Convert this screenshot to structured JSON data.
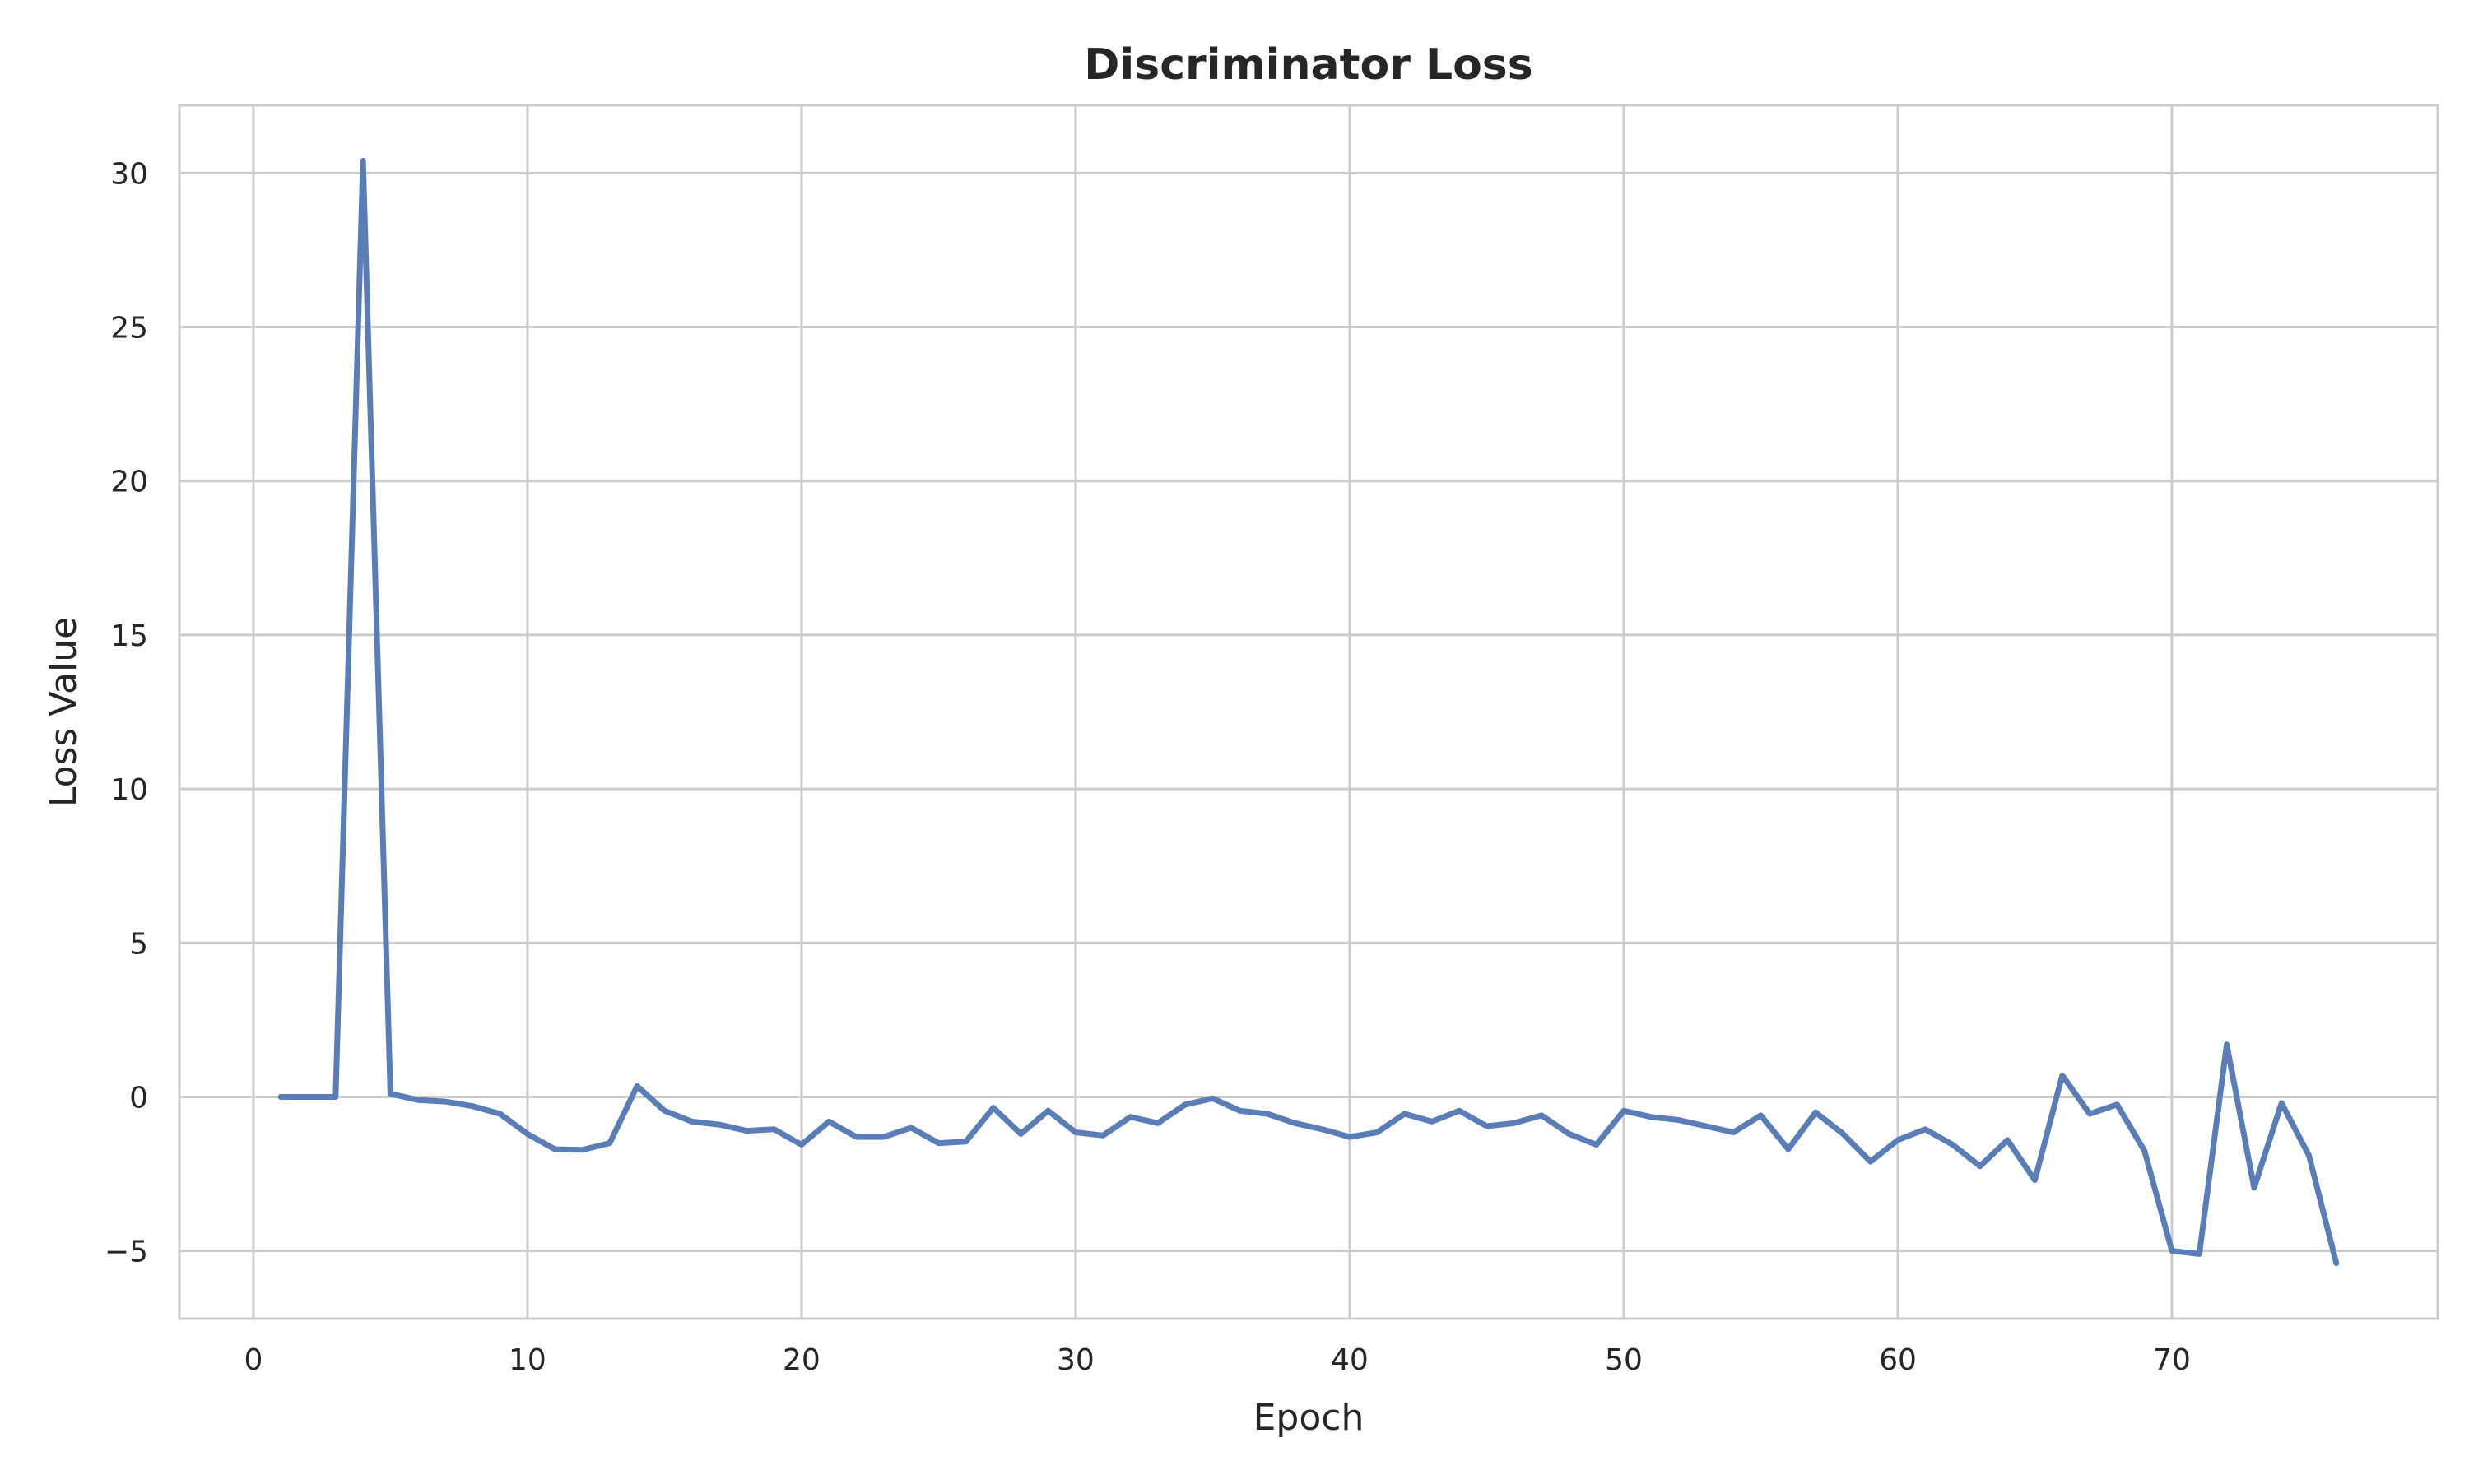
{
  "chart_data": {
    "type": "line",
    "title": "Discriminator Loss",
    "xlabel": "Epoch",
    "ylabel": "Loss Value",
    "xlim": [
      -2.7,
      79.7
    ],
    "ylim": [
      -7.2,
      32.2
    ],
    "xticks": [
      0,
      10,
      20,
      30,
      40,
      50,
      60,
      70
    ],
    "xtick_labels": [
      "0",
      "10",
      "20",
      "30",
      "40",
      "50",
      "60",
      "70"
    ],
    "yticks": [
      -5,
      0,
      5,
      10,
      15,
      20,
      25,
      30
    ],
    "ytick_labels": [
      "−5",
      "0",
      "5",
      "10",
      "15",
      "20",
      "25",
      "30"
    ],
    "grid": true,
    "legend": "none",
    "series": [
      {
        "color": "#5a7db8",
        "x": [
          1,
          2,
          3,
          4,
          5,
          6,
          7,
          8,
          9,
          10,
          11,
          12,
          13,
          14,
          15,
          16,
          17,
          18,
          19,
          20,
          21,
          22,
          23,
          24,
          25,
          26,
          27,
          28,
          29,
          30,
          31,
          32,
          33,
          34,
          35,
          36,
          37,
          38,
          39,
          40,
          41,
          42,
          43,
          44,
          45,
          46,
          47,
          48,
          49,
          50,
          51,
          52,
          53,
          54,
          55,
          56,
          57,
          58,
          59,
          60,
          61,
          62,
          63,
          64,
          65,
          66,
          67,
          68,
          69,
          70,
          71,
          72,
          73,
          74,
          75,
          76
        ],
        "y": [
          0.0,
          0.0,
          0.0,
          30.4,
          0.1,
          -0.1,
          -0.15,
          -0.3,
          -0.55,
          -1.2,
          -1.7,
          -1.72,
          -1.5,
          0.35,
          -0.45,
          -0.8,
          -0.9,
          -1.1,
          -1.05,
          -1.55,
          -0.8,
          -1.3,
          -1.3,
          -1.0,
          -1.5,
          -1.45,
          -0.35,
          -1.2,
          -0.45,
          -1.15,
          -1.25,
          -0.65,
          -0.85,
          -0.25,
          -0.05,
          -0.45,
          -0.55,
          -0.85,
          -1.05,
          -1.3,
          -1.15,
          -0.55,
          -0.8,
          -0.45,
          -0.95,
          -0.85,
          -0.6,
          -1.2,
          -1.55,
          -0.45,
          -0.65,
          -0.75,
          -0.95,
          -1.15,
          -0.6,
          -1.7,
          -0.5,
          -1.2,
          -2.1,
          -1.4,
          -1.05,
          -1.55,
          -2.25,
          -1.4,
          -2.7,
          0.7,
          -0.55,
          -0.25,
          -1.75,
          -5.0,
          -5.1,
          1.7,
          -2.95,
          -0.2,
          -1.9,
          -5.4
        ]
      }
    ]
  }
}
